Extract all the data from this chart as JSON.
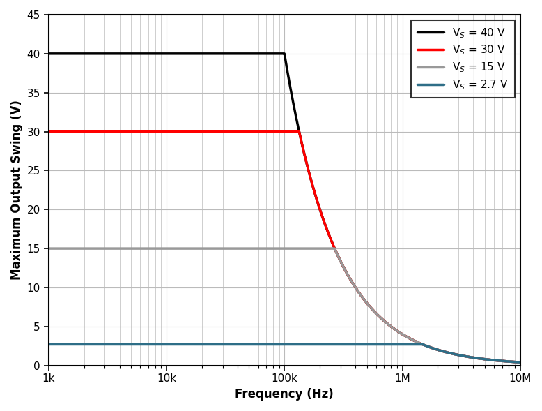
{
  "xlabel": "Frequency (Hz)",
  "ylabel": "Maximum Output Swing (V)",
  "xlim": [
    1000,
    10000000
  ],
  "ylim": [
    0,
    45
  ],
  "yticks": [
    0,
    5,
    10,
    15,
    20,
    25,
    30,
    35,
    40,
    45
  ],
  "background_color": "#ffffff",
  "grid_color": "#bbbbbb",
  "series": [
    {
      "label": "V$_S$ = 40 V",
      "color": "#000000",
      "flat_value": 40.0,
      "slew_rate_vus": 25.13
    },
    {
      "label": "V$_S$ = 30 V",
      "color": "#ff0000",
      "flat_value": 30.0,
      "slew_rate_vus": 25.13
    },
    {
      "label": "V$_S$ = 15 V",
      "color": "#999999",
      "flat_value": 15.0,
      "slew_rate_vus": 25.13
    },
    {
      "label": "V$_S$ = 2.7 V",
      "color": "#2e6e87",
      "flat_value": 2.7,
      "slew_rate_vus": 25.13
    }
  ],
  "linewidth": 2.5
}
